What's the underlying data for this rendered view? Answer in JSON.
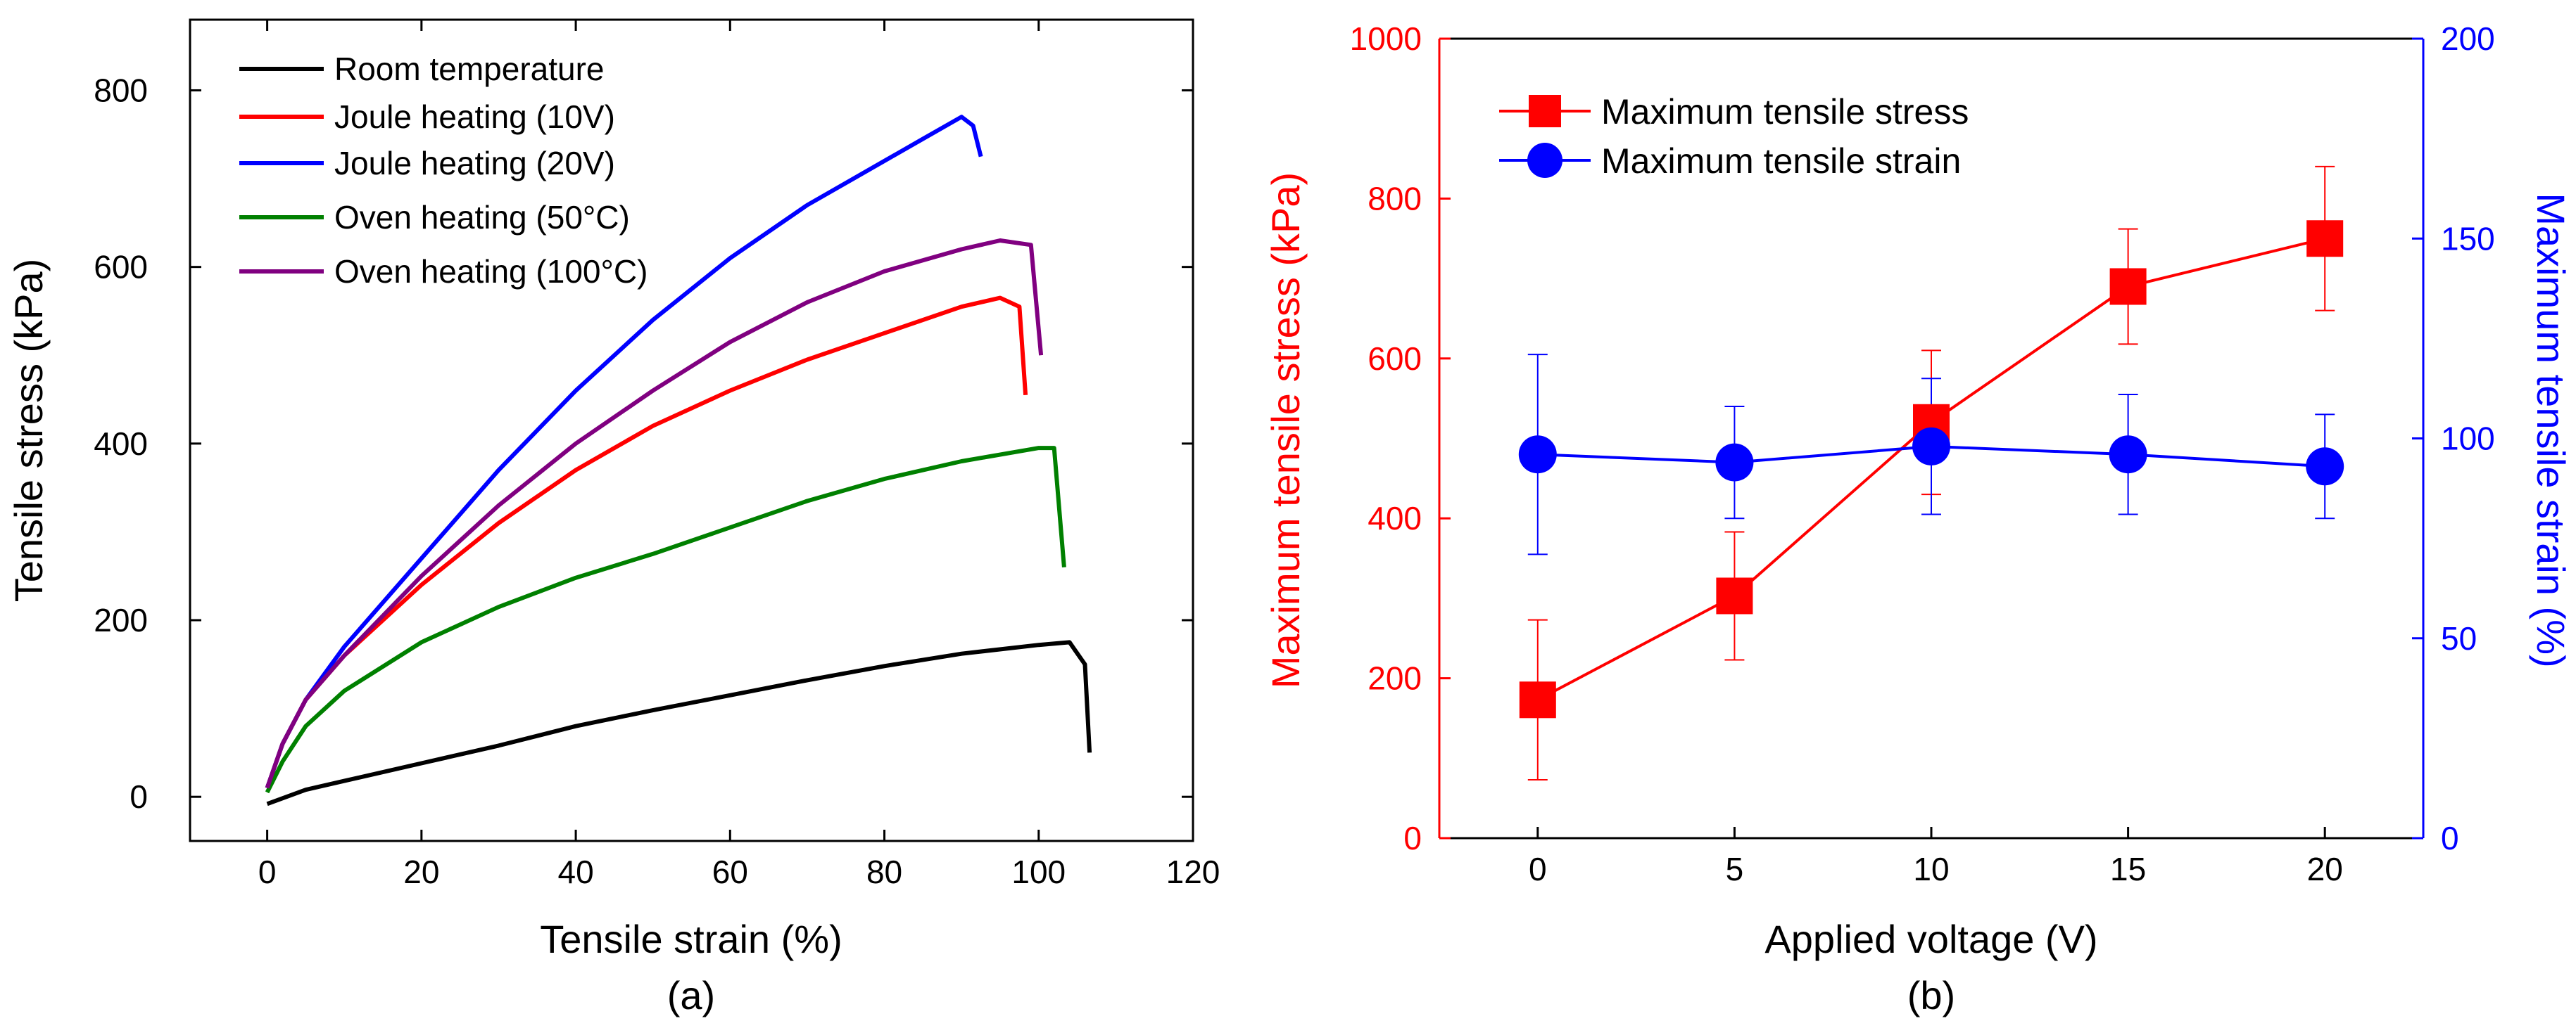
{
  "chart_data": [
    {
      "panel_label": "(a)",
      "type": "line",
      "xlabel": "Tensile strain (%)",
      "ylabel": "Tensile stress (kPa)",
      "xlim": [
        -10,
        120
      ],
      "ylim": [
        -50,
        880
      ],
      "xticks": [
        "0",
        "20",
        "40",
        "60",
        "80",
        "100",
        "120"
      ],
      "yticks": [
        "0",
        "200",
        "400",
        "600",
        "800"
      ],
      "grid": false,
      "legend_position": "top-left",
      "series": [
        {
          "name": "Room temperature",
          "color": "#000000",
          "x": [
            0,
            5,
            10,
            20,
            30,
            40,
            50,
            60,
            70,
            80,
            90,
            100,
            104,
            106,
            106.6
          ],
          "y": [
            -8,
            8,
            18,
            38,
            58,
            80,
            98,
            115,
            132,
            148,
            162,
            172,
            175,
            150,
            50
          ]
        },
        {
          "name": "Joule heating (10V)",
          "color": "#ff0000",
          "x": [
            0,
            2,
            5,
            10,
            20,
            30,
            40,
            50,
            60,
            70,
            80,
            90,
            95,
            97.5,
            98.3
          ],
          "y": [
            10,
            60,
            110,
            160,
            240,
            310,
            370,
            420,
            460,
            495,
            525,
            555,
            565,
            555,
            455
          ]
        },
        {
          "name": "Joule heating (20V)",
          "color": "#0000ff",
          "x": [
            0,
            2,
            5,
            10,
            20,
            30,
            40,
            50,
            60,
            70,
            80,
            85,
            90,
            91.5,
            92.5
          ],
          "y": [
            10,
            60,
            110,
            170,
            270,
            370,
            460,
            540,
            610,
            670,
            720,
            745,
            770,
            760,
            725
          ]
        },
        {
          "name": "Oven heating (50°C)",
          "color": "#008000",
          "x": [
            0,
            2,
            5,
            10,
            20,
            30,
            40,
            50,
            60,
            70,
            80,
            90,
            100,
            102,
            103.3
          ],
          "y": [
            5,
            40,
            80,
            120,
            175,
            215,
            248,
            275,
            305,
            335,
            360,
            380,
            395,
            395,
            260
          ]
        },
        {
          "name": "Oven heating (100°C)",
          "color": "#800080",
          "x": [
            0,
            2,
            5,
            10,
            20,
            30,
            40,
            50,
            60,
            70,
            80,
            90,
            95,
            99,
            100.3
          ],
          "y": [
            10,
            60,
            110,
            160,
            250,
            330,
            400,
            460,
            515,
            560,
            595,
            620,
            630,
            625,
            500
          ]
        }
      ]
    },
    {
      "panel_label": "(b)",
      "type": "line",
      "xlabel": "Applied voltage (V)",
      "ylabel": "Maximum tensile stress (kPa)",
      "y2label": "Maximum tensile strain (%)",
      "xlim": [
        -2.5,
        22.5
      ],
      "ylim": [
        0,
        1000
      ],
      "y2lim": [
        0,
        200
      ],
      "xticks": [
        "0",
        "5",
        "10",
        "15",
        "20"
      ],
      "yticks": [
        "0",
        "200",
        "400",
        "600",
        "800",
        "1000"
      ],
      "y2ticks": [
        "0",
        "50",
        "100",
        "150",
        "200"
      ],
      "grid": false,
      "legend_position": "top-left",
      "x": [
        0,
        5,
        10,
        15,
        20
      ],
      "series": [
        {
          "name": "Maximum tensile stress",
          "axis": "left",
          "marker": "square",
          "color": "#ff0000",
          "values": [
            173,
            303,
            520,
            690,
            750
          ],
          "error": [
            100,
            80,
            90,
            72,
            90
          ]
        },
        {
          "name": "Maximum tensile strain",
          "axis": "right",
          "marker": "circle",
          "color": "#0000ff",
          "values": [
            96,
            94,
            98,
            96,
            93
          ],
          "error": [
            25,
            14,
            17,
            15,
            13
          ]
        }
      ]
    }
  ]
}
